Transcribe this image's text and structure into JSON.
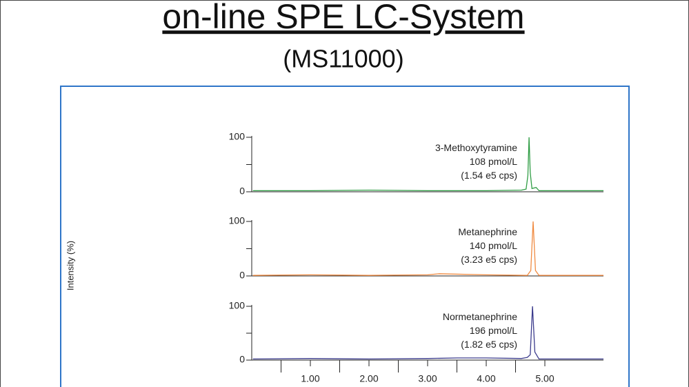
{
  "chart_data": {
    "type": "line",
    "title": "on-line SPE LC-System",
    "subtitle": "(MS11000)",
    "y_label": "Intensity (%)",
    "xlim": [
      0,
      6
    ],
    "xticks": [
      {
        "value": 1,
        "label": "1.00"
      },
      {
        "value": 2,
        "label": "2.00"
      },
      {
        "value": 3,
        "label": "3.00"
      },
      {
        "value": 4,
        "label": "4.00"
      },
      {
        "value": 5,
        "label": "5.00"
      }
    ],
    "xminor_ticks": [
      0.5,
      1.5,
      2.5,
      3.5,
      4.5
    ],
    "ylim": [
      0,
      100
    ],
    "yticks": [
      0,
      100
    ],
    "yminor_ticks": [
      50
    ],
    "series": [
      {
        "name": "3-Methoxytyramine",
        "concentration": "108 pmol/L",
        "signal": "(1.54 e5 cps)",
        "color": "#2f9d44",
        "x": [
          0.02,
          1,
          2,
          3,
          4,
          4.6,
          4.68,
          4.71,
          4.73,
          4.75,
          4.78,
          4.85,
          4.9,
          5,
          6
        ],
        "values": [
          2,
          2,
          3,
          2,
          2,
          3,
          5,
          30,
          100,
          35,
          6,
          8,
          2,
          2,
          2
        ]
      },
      {
        "name": "Metanephrine",
        "concentration": "140 pmol/L",
        "signal": "(3.23 e5 cps)",
        "color": "#f08a40",
        "x": [
          0.02,
          1,
          2,
          3,
          3.2,
          4,
          4.7,
          4.76,
          4.8,
          4.84,
          4.9,
          5,
          6
        ],
        "values": [
          1,
          2,
          1,
          2,
          4,
          2,
          1,
          10,
          100,
          10,
          1,
          1,
          1
        ]
      },
      {
        "name": "Normetanephrine",
        "concentration": "196 pmol/L",
        "signal": "(1.82 e5 cps)",
        "color": "#3b3b8c",
        "x": [
          0.02,
          1,
          2,
          3,
          3.5,
          4,
          4.6,
          4.7,
          4.75,
          4.79,
          4.83,
          4.9,
          5,
          6
        ],
        "values": [
          2,
          3,
          2,
          3,
          4,
          4,
          3,
          5,
          10,
          100,
          15,
          2,
          2,
          2
        ]
      }
    ]
  }
}
